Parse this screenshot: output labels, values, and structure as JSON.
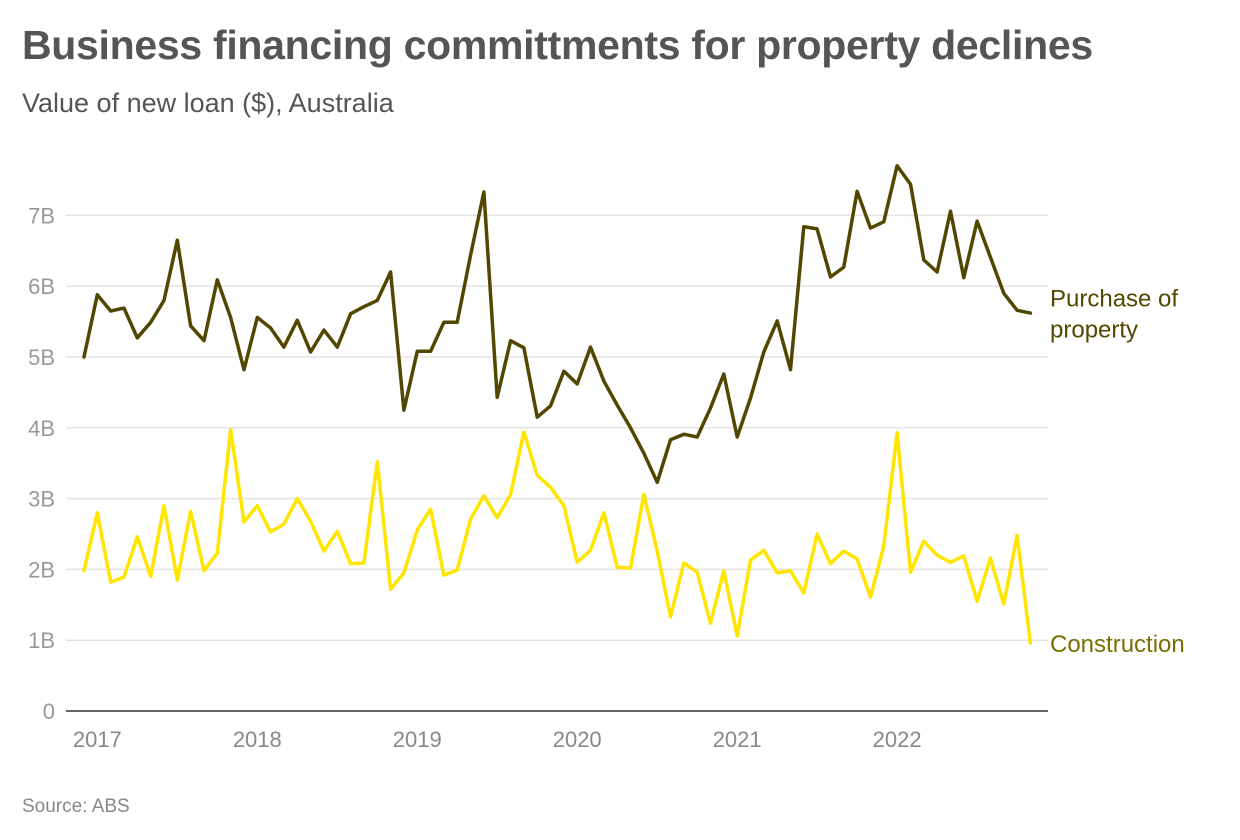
{
  "title": "Business financing committments for property declines",
  "subtitle": "Value of new loan ($), Australia",
  "source": "Source: ABS",
  "chart_data": {
    "type": "line",
    "title": "Business financing committments for property declines",
    "subtitle": "Value of new loan ($), Australia",
    "xlabel": "",
    "ylabel": "",
    "x_start": "2016-12",
    "x_unit": "month",
    "x_ticks": [
      {
        "label": "2017",
        "index": 1
      },
      {
        "label": "2018",
        "index": 13
      },
      {
        "label": "2019",
        "index": 25
      },
      {
        "label": "2020",
        "index": 37
      },
      {
        "label": "2021",
        "index": 49
      },
      {
        "label": "2022",
        "index": 61
      }
    ],
    "y_ticks": [
      {
        "label": "0",
        "value": 0
      },
      {
        "label": "1B",
        "value": 1
      },
      {
        "label": "2B",
        "value": 2
      },
      {
        "label": "3B",
        "value": 3
      },
      {
        "label": "4B",
        "value": 4
      },
      {
        "label": "5B",
        "value": 5
      },
      {
        "label": "6B",
        "value": 6
      },
      {
        "label": "7B",
        "value": 7
      }
    ],
    "ylim": [
      0,
      8
    ],
    "y_unit": "billion $",
    "grid": true,
    "legend": "direct labels at line ends (right)",
    "series": [
      {
        "name": "Purchase of property",
        "label_lines": [
          "Purchase of",
          "property"
        ],
        "color": "#524700",
        "label_color": "#524700",
        "values": [
          5.0,
          5.88,
          5.65,
          5.69,
          5.27,
          5.49,
          5.8,
          6.65,
          5.44,
          5.23,
          6.09,
          5.56,
          4.82,
          5.56,
          5.41,
          5.14,
          5.52,
          5.07,
          5.38,
          5.14,
          5.61,
          5.71,
          5.8,
          6.2,
          4.25,
          5.08,
          5.08,
          5.49,
          5.49,
          6.44,
          7.33,
          4.43,
          5.23,
          5.13,
          4.15,
          4.31,
          4.8,
          4.62,
          5.14,
          4.66,
          4.32,
          4.0,
          3.64,
          3.23,
          3.83,
          3.91,
          3.87,
          4.28,
          4.76,
          3.87,
          4.42,
          5.07,
          5.51,
          4.82,
          6.84,
          6.81,
          6.13,
          6.27,
          7.34,
          6.82,
          6.91,
          7.7,
          7.44,
          6.37,
          6.2,
          7.06,
          6.12,
          6.92,
          6.41,
          5.9,
          5.66,
          5.62
        ]
      },
      {
        "name": "Construction",
        "label_lines": [
          "Construction"
        ],
        "color": "#FFE500",
        "label_color": "#7A6E00",
        "values": [
          1.98,
          2.8,
          1.82,
          1.89,
          2.46,
          1.9,
          2.9,
          1.85,
          2.82,
          1.98,
          2.23,
          3.97,
          2.67,
          2.9,
          2.53,
          2.64,
          3.0,
          2.68,
          2.26,
          2.54,
          2.08,
          2.09,
          3.52,
          1.72,
          1.95,
          2.56,
          2.85,
          1.92,
          1.99,
          2.71,
          3.04,
          2.73,
          3.06,
          3.94,
          3.33,
          3.16,
          2.9,
          2.1,
          2.27,
          2.8,
          2.03,
          2.02,
          3.06,
          2.26,
          1.33,
          2.09,
          1.96,
          1.24,
          1.98,
          1.06,
          2.13,
          2.27,
          1.95,
          1.98,
          1.67,
          2.5,
          2.08,
          2.26,
          2.15,
          1.61,
          2.33,
          3.93,
          1.96,
          2.4,
          2.2,
          2.1,
          2.19,
          1.55,
          2.16,
          1.51,
          2.48,
          0.96
        ]
      }
    ]
  }
}
